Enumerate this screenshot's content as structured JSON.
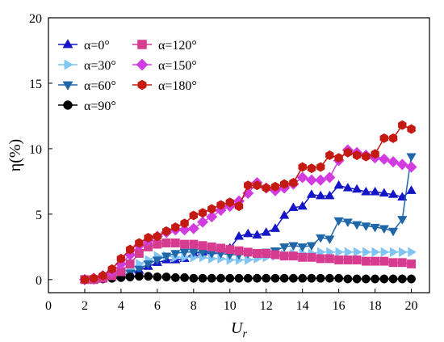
{
  "chart_data": {
    "type": "line",
    "xlabel": "U",
    "xlabel_sub": "r",
    "ylabel": "η(%)",
    "xlim": [
      0,
      21
    ],
    "ylim": [
      -1,
      20
    ],
    "xticks": [
      0,
      2,
      4,
      6,
      8,
      10,
      12,
      14,
      16,
      18,
      20
    ],
    "yticks": [
      0,
      5,
      10,
      15,
      20
    ],
    "grid": false,
    "legend_placement": "top-left",
    "x": [
      2.0,
      2.5,
      3.0,
      3.5,
      4.0,
      4.5,
      5.0,
      5.5,
      6.0,
      6.5,
      7.0,
      7.5,
      8.0,
      8.5,
      9.0,
      9.5,
      10.0,
      10.5,
      11.0,
      11.5,
      12.0,
      12.5,
      13.0,
      13.5,
      14.0,
      14.5,
      15.0,
      15.5,
      16.0,
      16.5,
      17.0,
      17.5,
      18.0,
      18.5,
      19.0,
      19.5,
      20.0
    ],
    "series": [
      {
        "name": "α=0°",
        "marker": "triangle-up",
        "color": "#1515c8",
        "values": [
          0.0,
          0.0,
          0.1,
          0.2,
          0.3,
          0.5,
          0.7,
          1.0,
          1.3,
          1.5,
          1.5,
          1.6,
          2.0,
          2.1,
          2.2,
          2.3,
          2.4,
          3.3,
          3.5,
          3.4,
          3.6,
          3.9,
          4.9,
          5.5,
          5.6,
          6.5,
          6.4,
          6.4,
          7.2,
          7.0,
          6.9,
          6.7,
          6.7,
          6.6,
          6.5,
          6.3,
          6.8
        ]
      },
      {
        "name": "α=30°",
        "marker": "triangle-right",
        "color": "#7fc4f2",
        "values": [
          0.0,
          0.0,
          0.1,
          0.2,
          0.4,
          0.8,
          1.2,
          1.5,
          1.8,
          1.8,
          1.7,
          1.7,
          1.7,
          1.7,
          1.6,
          1.6,
          1.5,
          1.5,
          1.5,
          1.6,
          1.7,
          1.8,
          1.9,
          2.0,
          2.0,
          2.0,
          2.1,
          2.1,
          2.1,
          2.1,
          2.1,
          2.1,
          2.1,
          2.1,
          2.1,
          2.1,
          2.1
        ]
      },
      {
        "name": "α=60°",
        "marker": "triangle-down",
        "color": "#1f67a8",
        "values": [
          0.0,
          0.0,
          0.1,
          0.2,
          0.3,
          0.5,
          0.8,
          1.2,
          1.5,
          1.8,
          2.0,
          2.1,
          2.1,
          2.1,
          2.0,
          2.0,
          1.9,
          1.9,
          2.0,
          2.0,
          2.1,
          2.2,
          2.5,
          2.6,
          2.5,
          2.6,
          3.2,
          3.1,
          4.5,
          4.4,
          4.2,
          4.1,
          4.0,
          3.9,
          3.7,
          4.6,
          9.4
        ]
      },
      {
        "name": "α=90°",
        "marker": "circle",
        "color": "#000000",
        "values": [
          0.0,
          0.0,
          0.05,
          0.1,
          0.15,
          0.2,
          0.25,
          0.25,
          0.2,
          0.2,
          0.15,
          0.15,
          0.1,
          0.1,
          0.1,
          0.1,
          0.1,
          0.1,
          0.1,
          0.1,
          0.1,
          0.1,
          0.1,
          0.1,
          0.1,
          0.1,
          0.1,
          0.1,
          0.1,
          0.05,
          0.05,
          0.05,
          0.05,
          0.05,
          0.05,
          0.05,
          0.05
        ]
      },
      {
        "name": "α=120°",
        "marker": "square",
        "color": "#d63b8f",
        "values": [
          0.0,
          0.0,
          0.1,
          0.3,
          0.6,
          1.2,
          2.0,
          2.5,
          2.7,
          2.8,
          2.8,
          2.7,
          2.7,
          2.6,
          2.5,
          2.4,
          2.3,
          2.2,
          2.1,
          2.0,
          2.0,
          1.9,
          1.8,
          1.8,
          1.7,
          1.7,
          1.6,
          1.6,
          1.5,
          1.5,
          1.5,
          1.4,
          1.4,
          1.4,
          1.3,
          1.3,
          1.2
        ]
      },
      {
        "name": "α=150°",
        "marker": "diamond",
        "color": "#d23be0",
        "values": [
          0.0,
          0.1,
          0.3,
          0.6,
          1.2,
          1.9,
          2.6,
          3.0,
          3.3,
          3.6,
          3.8,
          3.8,
          3.9,
          4.4,
          4.8,
          5.3,
          5.6,
          6.0,
          6.6,
          7.4,
          7.0,
          6.8,
          7.0,
          7.3,
          7.8,
          7.6,
          7.6,
          7.8,
          9.1,
          9.9,
          9.7,
          9.5,
          9.3,
          9.2,
          9.0,
          8.8,
          8.6
        ]
      },
      {
        "name": "α=180°",
        "marker": "hexagon",
        "color": "#c41a12",
        "values": [
          0.0,
          0.1,
          0.3,
          0.8,
          1.6,
          2.3,
          2.8,
          3.2,
          3.3,
          3.7,
          4.0,
          4.3,
          4.9,
          5.1,
          5.4,
          5.7,
          5.9,
          5.6,
          7.2,
          7.2,
          7.0,
          7.1,
          7.3,
          7.4,
          8.6,
          8.5,
          8.6,
          9.5,
          9.3,
          9.7,
          9.5,
          9.4,
          9.6,
          10.8,
          10.8,
          11.8,
          11.5
        ]
      }
    ]
  }
}
